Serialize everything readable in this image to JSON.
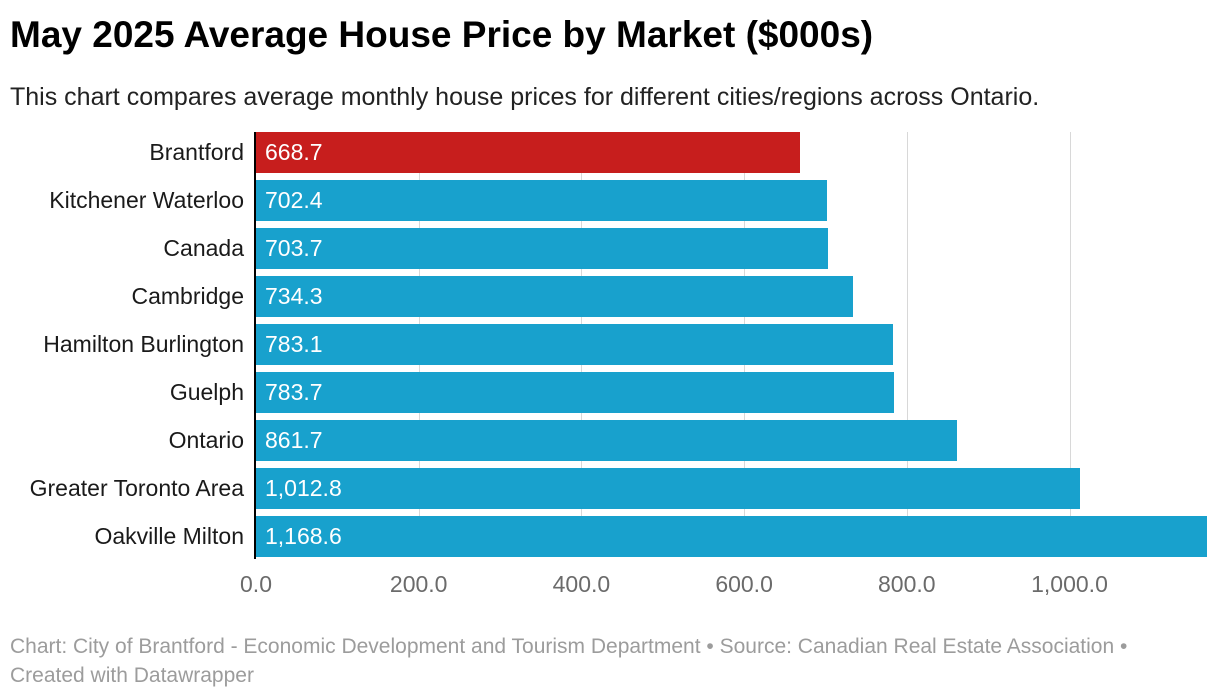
{
  "header": {
    "title": "May 2025 Average House Price by Market ($000s)",
    "subtitle": "This chart compares average monthly house prices for different cities/regions across Ontario."
  },
  "chart_data": {
    "type": "bar",
    "orientation": "horizontal",
    "title": "May 2025 Average House Price by Market ($000s)",
    "subtitle": "This chart compares average monthly house prices for different cities/regions across Ontario.",
    "xlabel": "",
    "ylabel": "",
    "categories": [
      "Brantford",
      "Kitchener Waterloo",
      "Canada",
      "Cambridge",
      "Hamilton Burlington",
      "Guelph",
      "Ontario",
      "Greater Toronto Area",
      "Oakville Milton"
    ],
    "values": [
      668.7,
      702.4,
      703.7,
      734.3,
      783.1,
      783.7,
      861.7,
      1012.8,
      1168.6
    ],
    "value_labels": [
      "668.7",
      "702.4",
      "703.7",
      "734.3",
      "783.1",
      "783.7",
      "861.7",
      "1,012.8",
      "1,168.6"
    ],
    "xlim": [
      0,
      1185
    ],
    "x_ticks": [
      0,
      200,
      400,
      600,
      800,
      1000
    ],
    "x_tick_labels": [
      "0.0",
      "200.0",
      "400.0",
      "600.0",
      "800.0",
      "1,000.0"
    ],
    "grid": "vertical",
    "legend": "none",
    "highlight_category": "Brantford",
    "colors": {
      "highlight": "#c71e1d",
      "default": "#18a1cd",
      "gridline": "#d8d8d8",
      "axis_line": "#000000"
    }
  },
  "footer": {
    "text": "Chart: City of Brantford - Economic Development and Tourism Department • Source: Canadian Real Estate Association • Created with Datawrapper"
  }
}
